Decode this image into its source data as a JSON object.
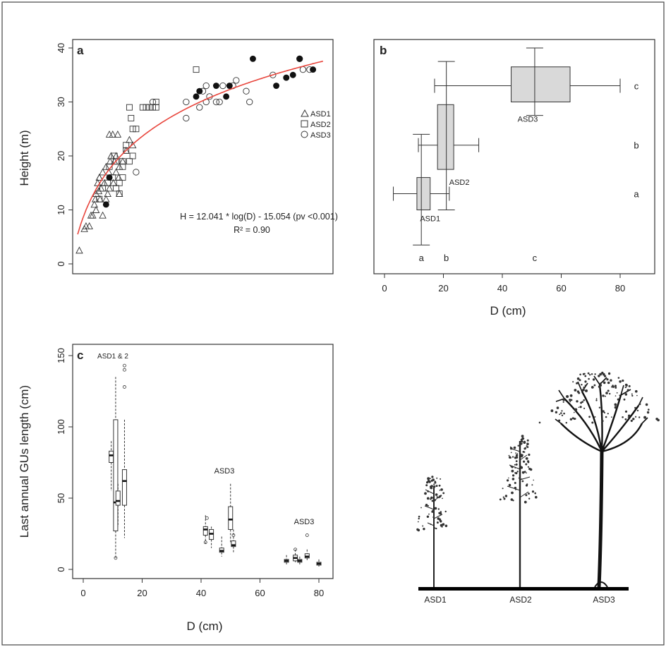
{
  "chart_data": [
    {
      "panel": "a",
      "type": "scatter",
      "ylabel": "Height (m)",
      "ylim": [
        0,
        40
      ],
      "yticks": [
        "0",
        "10",
        "20",
        "30",
        "40"
      ],
      "xlim": [
        4,
        82
      ],
      "legend": [
        "ASD1",
        "ASD2",
        "ASD3"
      ],
      "legend_position": "right",
      "annotation": "H = 12.041 * log(D) - 15.054 (pv <0.001)",
      "r2": "R² = 0.90",
      "fit": {
        "a": 12.041,
        "b": -15.054,
        "color": "#e8453c"
      },
      "series": [
        {
          "name": "ASD1",
          "marker": "triangle",
          "points": [
            [
              6,
              2.5
            ],
            [
              7.5,
              6.5
            ],
            [
              8,
              7
            ],
            [
              9,
              7
            ],
            [
              9.5,
              9
            ],
            [
              10,
              9
            ],
            [
              10.5,
              11
            ],
            [
              10.8,
              12
            ],
            [
              11,
              10
            ],
            [
              11,
              13
            ],
            [
              11.5,
              15
            ],
            [
              12,
              16
            ],
            [
              12.2,
              12
            ],
            [
              12.5,
              14
            ],
            [
              13,
              17
            ],
            [
              13,
              9
            ],
            [
              13.5,
              15
            ],
            [
              14,
              18
            ],
            [
              14,
              12
            ],
            [
              14.5,
              13
            ],
            [
              15,
              14
            ],
            [
              15,
              24
            ],
            [
              15.2,
              19
            ],
            [
              15.5,
              20
            ],
            [
              16,
              24
            ],
            [
              16.2,
              15
            ],
            [
              16.5,
              19
            ],
            [
              17,
              17
            ],
            [
              17,
              20
            ],
            [
              17.5,
              24
            ],
            [
              17.8,
              16
            ],
            [
              18,
              13
            ],
            [
              18,
              18
            ],
            [
              19,
              19
            ],
            [
              20,
              21
            ],
            [
              21,
              23
            ],
            [
              22,
              22
            ],
            [
              12,
              16
            ],
            [
              11.8,
              13.5
            ],
            [
              14.8,
              17
            ]
          ]
        },
        {
          "name": "ASD2",
          "marker": "square",
          "points": [
            [
              12,
              12
            ],
            [
              13,
              14
            ],
            [
              14.5,
              15
            ],
            [
              16,
              16
            ],
            [
              17,
              14
            ],
            [
              18,
              15
            ],
            [
              18,
              13
            ],
            [
              19,
              16
            ],
            [
              19,
              19
            ],
            [
              20,
              21
            ],
            [
              20,
              22
            ],
            [
              21,
              19
            ],
            [
              21,
              29
            ],
            [
              21.5,
              27
            ],
            [
              22,
              25
            ],
            [
              22,
              20
            ],
            [
              23,
              25
            ],
            [
              25,
              29
            ],
            [
              26,
              29
            ],
            [
              27,
              29
            ],
            [
              28,
              29
            ],
            [
              29,
              29
            ],
            [
              29,
              30
            ],
            [
              41,
              36
            ],
            [
              15,
              18
            ],
            [
              17,
              19
            ],
            [
              19,
              18
            ],
            [
              16.5,
              20
            ]
          ]
        },
        {
          "name": "ASD3",
          "marker": "circle",
          "points": [
            [
              23,
              17
            ],
            [
              28,
              30
            ],
            [
              38,
              27
            ],
            [
              38,
              30
            ],
            [
              42,
              29
            ],
            [
              43,
              32
            ],
            [
              44,
              30
            ],
            [
              44,
              33
            ],
            [
              45,
              31
            ],
            [
              47,
              30
            ],
            [
              48,
              30
            ],
            [
              49,
              33
            ],
            [
              52,
              33
            ],
            [
              53,
              34
            ],
            [
              56,
              32
            ],
            [
              57,
              30
            ],
            [
              64,
              35
            ],
            [
              72,
              38
            ],
            [
              73,
              36
            ],
            [
              75,
              36
            ]
          ]
        },
        {
          "name": "ASD3 (filled)",
          "marker": "filled-circle",
          "points": [
            [
              14,
              11
            ],
            [
              15,
              16
            ],
            [
              41,
              31
            ],
            [
              42,
              32
            ],
            [
              47,
              33
            ],
            [
              50,
              31
            ],
            [
              51,
              33
            ],
            [
              58,
              38
            ],
            [
              65,
              33
            ],
            [
              68,
              34.5
            ],
            [
              70,
              35
            ],
            [
              72,
              38
            ],
            [
              76,
              36
            ]
          ]
        }
      ]
    },
    {
      "panel": "b",
      "type": "boxplot-cross",
      "xlabel": "D (cm)",
      "xlim": [
        0,
        90
      ],
      "ylim": [
        0,
        40
      ],
      "xticks": [
        "0",
        "20",
        "40",
        "60",
        "80"
      ],
      "groups": [
        {
          "name": "ASD1",
          "d": {
            "min": 3,
            "q1": 11,
            "median": 12.5,
            "q3": 15.5,
            "max": 22
          },
          "h": {
            "min": 3.5,
            "q1": 10,
            "median": 13,
            "q3": 16,
            "max": 24
          },
          "dletter": "a",
          "hletter": "a"
        },
        {
          "name": "ASD2",
          "d": {
            "min": 11.5,
            "q1": 18,
            "median": 21,
            "q3": 23.5,
            "max": 32
          },
          "h": {
            "min": 10,
            "q1": 17.5,
            "median": 22,
            "q3": 29.5,
            "max": 37.5
          },
          "dletter": "b",
          "hletter": "b"
        },
        {
          "name": "ASD3",
          "d": {
            "min": 17,
            "q1": 43,
            "median": 51,
            "q3": 63,
            "max": 80
          },
          "h": {
            "min": 27.5,
            "q1": 30,
            "median": 33,
            "q3": 36.5,
            "max": 40
          },
          "dletter": "c",
          "hletter": "c"
        }
      ]
    },
    {
      "panel": "c",
      "type": "boxplot",
      "xlabel": "D (cm)",
      "ylabel": "Last annual GUs length (cm)",
      "xlim": [
        -5,
        95
      ],
      "ylim": [
        0,
        150
      ],
      "xticks": [
        "0",
        "20",
        "40",
        "60",
        "80"
      ],
      "yticks": [
        "0",
        "50",
        "100",
        "150"
      ],
      "group_labels": [
        "ASD1 & 2",
        "ASD3",
        "ASD3"
      ],
      "boxes": [
        {
          "x": 9.5,
          "min": 55,
          "q1": 75,
          "median": 80,
          "q3": 83,
          "max": 90
        },
        {
          "x": 11,
          "min": 8,
          "q1": 27,
          "median": 47,
          "q3": 105,
          "max": 135
        },
        {
          "x": 11.8,
          "min": 30,
          "q1": 45,
          "median": 48,
          "q3": 55,
          "max": 60
        },
        {
          "x": 14,
          "min": 22,
          "q1": 45,
          "median": 62,
          "q3": 70,
          "max": 105
        },
        {
          "x": 41.5,
          "min": 18,
          "q1": 24,
          "median": 28,
          "q3": 30,
          "max": 38
        },
        {
          "x": 43.5,
          "min": 15,
          "q1": 21,
          "median": 25,
          "q3": 28,
          "max": 30
        },
        {
          "x": 47,
          "min": 9,
          "q1": 12,
          "median": 13,
          "q3": 15,
          "max": 23
        },
        {
          "x": 50,
          "min": 18,
          "q1": 28,
          "median": 35,
          "q3": 44,
          "max": 60
        },
        {
          "x": 51,
          "min": 12,
          "q1": 16,
          "median": 17,
          "q3": 20,
          "max": 28
        },
        {
          "x": 69,
          "min": 3,
          "q1": 5,
          "median": 6,
          "q3": 7,
          "max": 10
        },
        {
          "x": 72,
          "min": 5,
          "q1": 6,
          "median": 8,
          "q3": 10,
          "max": 14
        },
        {
          "x": 73.5,
          "min": 3,
          "q1": 5,
          "median": 6,
          "q3": 7,
          "max": 9
        },
        {
          "x": 76,
          "min": 6,
          "q1": 8,
          "median": 9,
          "q3": 11,
          "max": 14
        },
        {
          "x": 80,
          "min": 2,
          "q1": 3,
          "median": 4,
          "q3": 5,
          "max": 7
        }
      ],
      "outliers": [
        [
          14,
          140
        ],
        [
          14,
          143
        ],
        [
          14,
          128
        ],
        [
          11,
          8
        ],
        [
          41.5,
          19
        ],
        [
          42,
          36
        ],
        [
          76,
          24
        ],
        [
          72,
          14
        ],
        [
          51,
          24
        ]
      ]
    }
  ],
  "panel_labels": {
    "a": "a",
    "b": "b",
    "c": "c"
  },
  "trees": {
    "labels": [
      "ASD1",
      "ASD2",
      "ASD3"
    ]
  }
}
